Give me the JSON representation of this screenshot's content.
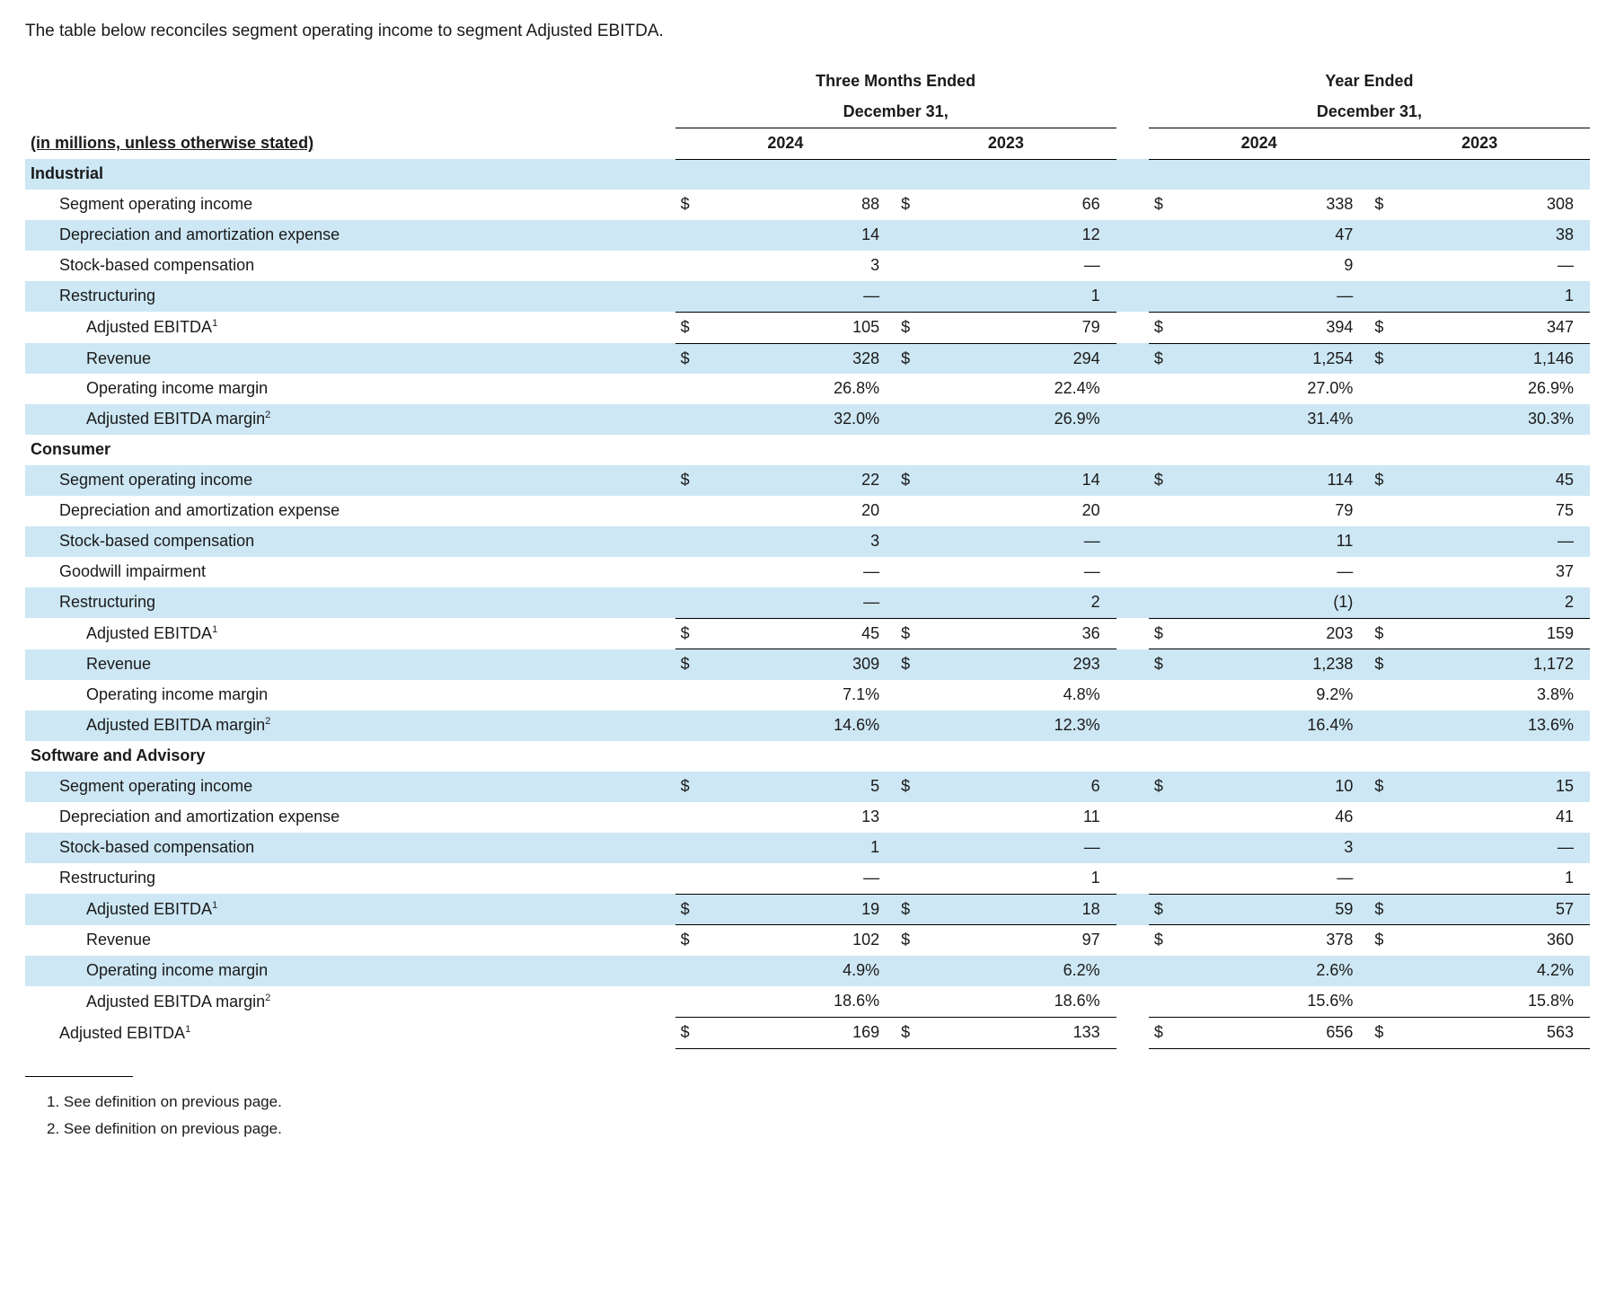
{
  "intro": "The table below reconciles segment operating income to segment Adjusted EBITDA.",
  "headers": {
    "group1": "Three Months Ended",
    "group2": "Year Ended",
    "sub": "December 31,",
    "y24": "2024",
    "y23": "2023"
  },
  "units_label": "(in millions, unless otherwise stated)",
  "labels": {
    "soi": "Segment operating income",
    "dep": "Depreciation and amortization expense",
    "sbc": "Stock-based compensation",
    "gwi": "Goodwill impairment",
    "res": "Restructuring",
    "aeb": "Adjusted EBITDA",
    "rev": "Revenue",
    "oim": "Operating income margin",
    "aem": "Adjusted EBITDA margin"
  },
  "segments": {
    "ind": "Industrial",
    "con": "Consumer",
    "sw": "Software and Advisory"
  },
  "data": {
    "ind": {
      "soi": [
        "88",
        "66",
        "338",
        "308"
      ],
      "dep": [
        "14",
        "12",
        "47",
        "38"
      ],
      "sbc": [
        "3",
        "—",
        "9",
        "—"
      ],
      "res": [
        "—",
        "1",
        "—",
        "1"
      ],
      "aeb": [
        "105",
        "79",
        "394",
        "347"
      ],
      "rev": [
        "328",
        "294",
        "1,254",
        "1,146"
      ],
      "oim": [
        "26.8%",
        "22.4%",
        "27.0%",
        "26.9%"
      ],
      "aem": [
        "32.0%",
        "26.9%",
        "31.4%",
        "30.3%"
      ]
    },
    "con": {
      "soi": [
        "22",
        "14",
        "114",
        "45"
      ],
      "dep": [
        "20",
        "20",
        "79",
        "75"
      ],
      "sbc": [
        "3",
        "—",
        "11",
        "—"
      ],
      "gwi": [
        "—",
        "—",
        "—",
        "37"
      ],
      "res": [
        "—",
        "2",
        "(1)",
        "2"
      ],
      "aeb": [
        "45",
        "36",
        "203",
        "159"
      ],
      "rev": [
        "309",
        "293",
        "1,238",
        "1,172"
      ],
      "oim": [
        "7.1%",
        "4.8%",
        "9.2%",
        "3.8%"
      ],
      "aem": [
        "14.6%",
        "12.3%",
        "16.4%",
        "13.6%"
      ]
    },
    "sw": {
      "soi": [
        "5",
        "6",
        "10",
        "15"
      ],
      "dep": [
        "13",
        "11",
        "46",
        "41"
      ],
      "sbc": [
        "1",
        "—",
        "3",
        "—"
      ],
      "res": [
        "—",
        "1",
        "—",
        "1"
      ],
      "aeb": [
        "19",
        "18",
        "59",
        "57"
      ],
      "rev": [
        "102",
        "97",
        "378",
        "360"
      ],
      "oim": [
        "4.9%",
        "6.2%",
        "2.6%",
        "4.2%"
      ],
      "aem": [
        "18.6%",
        "18.6%",
        "15.6%",
        "15.8%"
      ]
    },
    "total_aeb": [
      "169",
      "133",
      "656",
      "563"
    ]
  },
  "footnotes": {
    "f1": "1. See definition on previous page.",
    "f2": "2. See definition on previous page."
  },
  "sym": {
    "dollar": "$"
  },
  "colors": {
    "shade": "#cde7f4",
    "text": "#1a1a1a",
    "rule": "#000000",
    "bg": "#ffffff"
  },
  "typography": {
    "body_fontsize": 18,
    "intro_fontsize": 19,
    "fn_fontsize": 17,
    "font_family": "Arial"
  }
}
